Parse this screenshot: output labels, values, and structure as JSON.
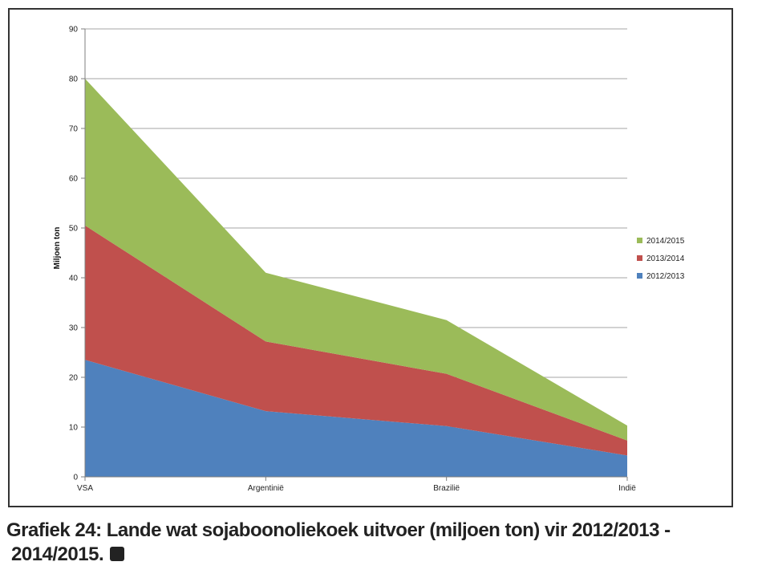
{
  "chart_data": {
    "type": "area",
    "stacked": true,
    "categories": [
      "VSA",
      "Argentinië",
      "Brazilië",
      "Indië"
    ],
    "series": [
      {
        "name": "2012/2013",
        "values": [
          23.5,
          13.2,
          10.2,
          4.3
        ],
        "color": "#4f81bd"
      },
      {
        "name": "2013/2014",
        "values": [
          27.0,
          14.0,
          10.5,
          3.0
        ],
        "color": "#c0504d"
      },
      {
        "name": "2014/2015",
        "values": [
          29.5,
          13.8,
          10.8,
          3.0
        ],
        "color": "#9bbb59"
      }
    ],
    "ylabel": "Miljoen ton",
    "ylim": [
      0,
      90
    ],
    "yticks": [
      "0",
      "10",
      "20",
      "30",
      "40",
      "50",
      "60",
      "70",
      "80",
      "90"
    ],
    "grid": true,
    "legend_position": "right",
    "legend_order": [
      "2014/2015",
      "2013/2014",
      "2012/2013"
    ]
  },
  "caption": {
    "line1": "Grafiek 24: Lande wat sojaboonoliekoek uitvoer (miljoen ton) vir 2012/2013 -",
    "line2": "2014/2015."
  }
}
